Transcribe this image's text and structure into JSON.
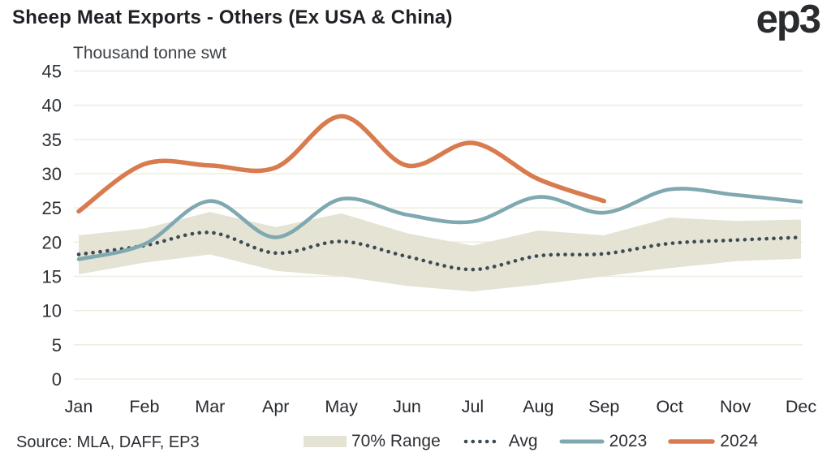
{
  "header": {
    "title": "Sheep Meat Exports - Others (Ex USA & China)",
    "logo": "ep3"
  },
  "source": {
    "text": "Source: MLA, DAFF, EP3"
  },
  "chart_data": {
    "type": "line",
    "title": "Sheep Meat Exports - Others (Ex USA & China)",
    "ylabel": "Thousand tonne swt",
    "xlabel": "",
    "categories": [
      "Jan",
      "Feb",
      "Mar",
      "Apr",
      "May",
      "Jun",
      "Jul",
      "Aug",
      "Sep",
      "Oct",
      "Nov",
      "Dec"
    ],
    "ylim": [
      0,
      45
    ],
    "yticks": [
      0,
      5,
      10,
      15,
      20,
      25,
      30,
      35,
      40,
      45
    ],
    "grid": true,
    "grid_color": "#eeede1",
    "legend_position": "bottom",
    "band": {
      "name": "70% Range",
      "color": "#e4e3d4",
      "low": [
        15.3,
        17.0,
        18.2,
        15.8,
        15.0,
        13.6,
        12.8,
        13.8,
        15.0,
        16.2,
        17.2,
        17.6
      ],
      "high": [
        21.0,
        22.0,
        24.4,
        22.2,
        24.2,
        21.3,
        19.5,
        21.7,
        21.0,
        23.6,
        23.1,
        23.3
      ]
    },
    "series": [
      {
        "name": "Avg",
        "style": "dotted",
        "color": "#3d4b55",
        "values": [
          18.2,
          19.5,
          21.4,
          18.4,
          20.1,
          17.9,
          16.0,
          18.0,
          18.3,
          19.8,
          20.3,
          20.7
        ]
      },
      {
        "name": "2023",
        "style": "solid",
        "color": "#7fa8b1",
        "values": [
          17.5,
          19.7,
          26.0,
          20.7,
          26.3,
          24.0,
          23.0,
          26.6,
          24.3,
          27.7,
          26.9,
          25.9
        ]
      },
      {
        "name": "2024",
        "style": "solid",
        "color": "#d87b4e",
        "values": [
          24.5,
          31.4,
          31.2,
          30.9,
          38.4,
          31.2,
          34.5,
          29.2,
          26.0,
          null,
          null,
          null
        ]
      }
    ]
  }
}
